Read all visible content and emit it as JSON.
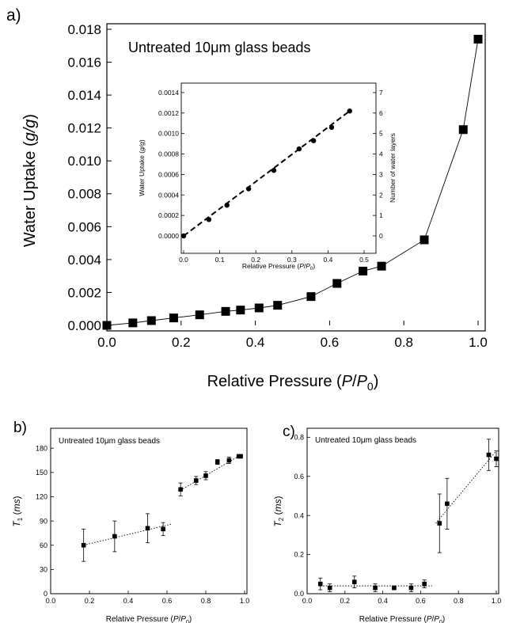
{
  "panels": {
    "a": {
      "label": "a)",
      "annotation": "Untreated 10μm glass beads"
    },
    "b": {
      "label": "b)",
      "annotation": "Untreated 10μm glass beads"
    },
    "c": {
      "label": "c)",
      "annotation": "Untreated 10μm glass beads"
    }
  },
  "chart_data": [
    {
      "id": "a",
      "type": "line",
      "title": "",
      "xlabel": "Relative Pressure (P/P0)",
      "ylabel": "Water Uptake (g/g)",
      "xlim": [
        0,
        1.0
      ],
      "ylim": [
        0,
        0.018
      ],
      "x_ticks": [
        "0.0",
        "0.2",
        "0.4",
        "0.6",
        "0.8",
        "1.0"
      ],
      "y_ticks": [
        "0.000",
        "0.002",
        "0.004",
        "0.006",
        "0.008",
        "0.010",
        "0.012",
        "0.014",
        "0.016",
        "0.018"
      ],
      "grid": false,
      "marker": "square",
      "color": "#000000",
      "x": [
        0.0,
        0.07,
        0.12,
        0.18,
        0.25,
        0.32,
        0.36,
        0.41,
        0.46,
        0.55,
        0.62,
        0.69,
        0.74,
        0.855,
        0.96,
        1.0
      ],
      "y": [
        0.0,
        0.00015,
        0.00029,
        0.00045,
        0.00064,
        0.00085,
        0.00093,
        0.00106,
        0.00122,
        0.00175,
        0.00255,
        0.0033,
        0.0036,
        0.0052,
        0.0119,
        0.0174
      ]
    },
    {
      "id": "a-inset",
      "type": "scatter",
      "xlabel": "Relative Pressure (P/P0)",
      "ylabel": "Water Uptake (g/g)",
      "y2label": "Number of water layers",
      "xlim": [
        0,
        0.5
      ],
      "ylim": [
        0,
        0.0015
      ],
      "y2lim": [
        0,
        7.5
      ],
      "x_ticks": [
        "0.0",
        "0.1",
        "0.2",
        "0.3",
        "0.4",
        "0.5"
      ],
      "y_ticks": [
        "0.0000",
        "0.0002",
        "0.0004",
        "0.0006",
        "0.0008",
        "0.0010",
        "0.0012",
        "0.0014"
      ],
      "y2_ticks": [
        "0",
        "1",
        "2",
        "3",
        "4",
        "5",
        "6",
        "7"
      ],
      "marker": "circle",
      "fit_line": "dashed",
      "x": [
        0.0,
        0.07,
        0.12,
        0.18,
        0.25,
        0.32,
        0.36,
        0.41,
        0.46
      ],
      "y": [
        0.0,
        0.00016,
        0.0003,
        0.00046,
        0.00064,
        0.00085,
        0.00093,
        0.00106,
        0.00122
      ],
      "fit": {
        "x": [
          0.0,
          0.46
        ],
        "y": [
          0.0,
          0.00122
        ]
      }
    },
    {
      "id": "b",
      "type": "scatter",
      "xlabel": "Relative Pressure (P/P0)",
      "ylabel": "T1 (ms)",
      "xlim": [
        0,
        1.0
      ],
      "ylim": [
        0,
        190
      ],
      "x_ticks": [
        "0.0",
        "0.2",
        "0.4",
        "0.6",
        "0.8",
        "1.0"
      ],
      "y_ticks": [
        "0",
        "30",
        "60",
        "90",
        "120",
        "150",
        "180"
      ],
      "marker": "square",
      "x": [
        0.17,
        0.33,
        0.5,
        0.58,
        0.67,
        0.75,
        0.8,
        0.86,
        0.92,
        0.97,
        0.98
      ],
      "y": [
        60,
        71,
        81,
        80,
        129,
        140,
        146,
        163,
        165,
        170,
        170
      ],
      "err": [
        20,
        19,
        18,
        8,
        8,
        5,
        5,
        3,
        4,
        2,
        2
      ],
      "fits": [
        {
          "x": [
            0.17,
            0.62
          ],
          "y": [
            60,
            86
          ]
        },
        {
          "x": [
            0.67,
            0.99
          ],
          "y": [
            128,
            173
          ]
        }
      ]
    },
    {
      "id": "c",
      "type": "scatter",
      "xlabel": "Relative Pressure (P/P0)",
      "ylabel": "T2 (ms)",
      "xlim": [
        0,
        1.0
      ],
      "ylim": [
        0,
        0.85
      ],
      "x_ticks": [
        "0.0",
        "0.2",
        "0.4",
        "0.6",
        "0.8",
        "1.0"
      ],
      "y_ticks": [
        "0.0",
        "0.2",
        "0.4",
        "0.6",
        "0.8"
      ],
      "marker": "square",
      "x": [
        0.07,
        0.12,
        0.25,
        0.36,
        0.46,
        0.55,
        0.62,
        0.7,
        0.74,
        0.96,
        1.0
      ],
      "y": [
        0.05,
        0.03,
        0.06,
        0.03,
        0.03,
        0.03,
        0.05,
        0.36,
        0.46,
        0.71,
        0.69
      ],
      "err": [
        0.03,
        0.02,
        0.03,
        0.02,
        0.01,
        0.02,
        0.02,
        0.15,
        0.13,
        0.08,
        0.04
      ],
      "fits": [
        {
          "x": [
            0.07,
            0.66
          ],
          "y": [
            0.04,
            0.04
          ]
        },
        {
          "x": [
            0.68,
            1.0
          ],
          "y": [
            0.36,
            0.73
          ]
        }
      ]
    }
  ]
}
